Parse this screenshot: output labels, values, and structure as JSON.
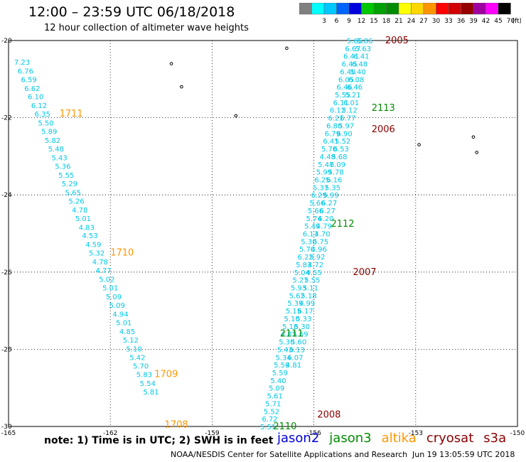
{
  "header": {
    "title": "12:00 – 23:59 UTC 06/18/2018",
    "subtitle": "12 hour collection of altimeter wave heights"
  },
  "color_legend": {
    "unit": "(ft)",
    "bins": [
      {
        "label": "",
        "color": "#808080"
      },
      {
        "label": "3",
        "color": "#00ffff"
      },
      {
        "label": "6",
        "color": "#00c8ff"
      },
      {
        "label": "9",
        "color": "#0064ff"
      },
      {
        "label": "12",
        "color": "#0000dc"
      },
      {
        "label": "15",
        "color": "#00c800"
      },
      {
        "label": "18",
        "color": "#00a000"
      },
      {
        "label": "21",
        "color": "#008c00"
      },
      {
        "label": "24",
        "color": "#ffff00"
      },
      {
        "label": "27",
        "color": "#ffd700"
      },
      {
        "label": "30",
        "color": "#ff9600"
      },
      {
        "label": "33",
        "color": "#ff0000"
      },
      {
        "label": "36",
        "color": "#d20000"
      },
      {
        "label": "39",
        "color": "#960000"
      },
      {
        "label": "42",
        "color": "#a000a0"
      },
      {
        "label": "45",
        "color": "#ff00ff"
      },
      {
        "label": "70",
        "color": "#000000"
      }
    ]
  },
  "map": {
    "lon_ticks": [
      "-165",
      "-162",
      "-159",
      "-156",
      "-153",
      "-150"
    ],
    "lat_ticks": [
      "-20",
      "-22",
      "-24",
      "-26",
      "-28",
      "-30"
    ]
  },
  "colors": {
    "swh": "#00c8e6",
    "altika": "#ff9600",
    "jason3": "#008c00",
    "cryosat": "#8b0000",
    "jason2": "#0000dc",
    "s3a": "#8b0000"
  },
  "tracks": [
    {
      "name": "left-track",
      "points": [
        {
          "lon": -164.6,
          "lat": -20.55,
          "v": "7.23"
        },
        {
          "lon": -164.5,
          "lat": -20.78,
          "v": "6.76"
        },
        {
          "lon": -164.4,
          "lat": -21.0,
          "v": "6.59"
        },
        {
          "lon": -164.3,
          "lat": -21.23,
          "v": "6.62"
        },
        {
          "lon": -164.2,
          "lat": -21.45,
          "v": "6.10"
        },
        {
          "lon": -164.1,
          "lat": -21.68,
          "v": "6.12"
        },
        {
          "lon": -164.0,
          "lat": -21.9,
          "v": "6.35"
        },
        {
          "lon": -163.9,
          "lat": -22.13,
          "v": "5.50"
        },
        {
          "lon": -163.8,
          "lat": -22.35,
          "v": "5.89"
        },
        {
          "lon": -163.7,
          "lat": -22.58,
          "v": "5.82"
        },
        {
          "lon": -163.6,
          "lat": -22.8,
          "v": "5.48"
        },
        {
          "lon": -163.5,
          "lat": -23.03,
          "v": "5.43"
        },
        {
          "lon": -163.4,
          "lat": -23.25,
          "v": "5.36"
        },
        {
          "lon": -163.3,
          "lat": -23.48,
          "v": "5.55"
        },
        {
          "lon": -163.2,
          "lat": -23.7,
          "v": "5.29"
        },
        {
          "lon": -163.1,
          "lat": -23.93,
          "v": "5.65"
        },
        {
          "lon": -163.0,
          "lat": -24.15,
          "v": "5.26"
        },
        {
          "lon": -162.9,
          "lat": -24.38,
          "v": "4.78"
        },
        {
          "lon": -162.8,
          "lat": -24.6,
          "v": "5.01"
        },
        {
          "lon": -162.7,
          "lat": -24.83,
          "v": "4.83"
        },
        {
          "lon": -162.6,
          "lat": -25.05,
          "v": "4.53"
        },
        {
          "lon": -162.5,
          "lat": -25.28,
          "v": "4.59"
        },
        {
          "lon": -162.4,
          "lat": -25.5,
          "v": "5.32"
        },
        {
          "lon": -162.3,
          "lat": -25.73,
          "v": "4.78"
        },
        {
          "lon": -162.2,
          "lat": -25.95,
          "v": "4.77"
        },
        {
          "lon": -162.1,
          "lat": -26.18,
          "v": "5.02"
        },
        {
          "lon": -162.0,
          "lat": -26.4,
          "v": "5.01"
        },
        {
          "lon": -161.9,
          "lat": -26.63,
          "v": "5.09"
        },
        {
          "lon": -161.8,
          "lat": -26.85,
          "v": "5.09"
        },
        {
          "lon": -161.7,
          "lat": -27.08,
          "v": "4.94"
        },
        {
          "lon": -161.6,
          "lat": -27.3,
          "v": "5.01"
        },
        {
          "lon": -161.5,
          "lat": -27.53,
          "v": "4.85"
        },
        {
          "lon": -161.4,
          "lat": -27.75,
          "v": "5.12"
        },
        {
          "lon": -161.3,
          "lat": -27.98,
          "v": "5.10"
        },
        {
          "lon": -161.2,
          "lat": -28.2,
          "v": "5.42"
        },
        {
          "lon": -161.1,
          "lat": -28.43,
          "v": "5.70"
        },
        {
          "lon": -161.0,
          "lat": -28.65,
          "v": "5.83"
        },
        {
          "lon": -160.9,
          "lat": -28.88,
          "v": "5.54"
        },
        {
          "lon": -160.8,
          "lat": -29.1,
          "v": "5.81"
        }
      ]
    },
    {
      "name": "track-2110",
      "points": [
        {
          "lon": -154.8,
          "lat": -20.0,
          "v": "5.66"
        },
        {
          "lon": -154.85,
          "lat": -20.2,
          "v": "6.67"
        },
        {
          "lon": -154.9,
          "lat": -20.4,
          "v": "6.41"
        },
        {
          "lon": -154.95,
          "lat": -20.6,
          "v": "6.45"
        },
        {
          "lon": -155.0,
          "lat": -20.8,
          "v": "6.40"
        },
        {
          "lon": -155.05,
          "lat": -21.0,
          "v": "6.05"
        },
        {
          "lon": -155.1,
          "lat": -21.2,
          "v": "6.46"
        },
        {
          "lon": -155.15,
          "lat": -21.4,
          "v": "5.55"
        },
        {
          "lon": -155.2,
          "lat": -21.6,
          "v": "6.11"
        },
        {
          "lon": -155.3,
          "lat": -21.8,
          "v": "6.12"
        },
        {
          "lon": -155.35,
          "lat": -22.0,
          "v": "6.21"
        },
        {
          "lon": -155.4,
          "lat": -22.2,
          "v": "6.80"
        },
        {
          "lon": -155.45,
          "lat": -22.4,
          "v": "6.79"
        },
        {
          "lon": -155.5,
          "lat": -22.6,
          "v": "6.41"
        },
        {
          "lon": -155.55,
          "lat": -22.8,
          "v": "5.70"
        },
        {
          "lon": -155.6,
          "lat": -23.0,
          "v": "4.48"
        },
        {
          "lon": -155.65,
          "lat": -23.2,
          "v": "5.47"
        },
        {
          "lon": -155.7,
          "lat": -23.4,
          "v": "5.99"
        },
        {
          "lon": -155.75,
          "lat": -23.6,
          "v": "6.25"
        },
        {
          "lon": -155.8,
          "lat": -23.8,
          "v": "5.37"
        },
        {
          "lon": -155.85,
          "lat": -24.0,
          "v": "6.29"
        },
        {
          "lon": -155.9,
          "lat": -24.2,
          "v": "5.66"
        },
        {
          "lon": -155.95,
          "lat": -24.4,
          "v": "5.66"
        },
        {
          "lon": -156.0,
          "lat": -24.6,
          "v": "5.74"
        },
        {
          "lon": -156.05,
          "lat": -24.8,
          "v": "5.49"
        },
        {
          "lon": -156.1,
          "lat": -25.0,
          "v": "6.13"
        },
        {
          "lon": -156.15,
          "lat": -25.2,
          "v": "5.30"
        },
        {
          "lon": -156.2,
          "lat": -25.4,
          "v": "5.70"
        },
        {
          "lon": -156.25,
          "lat": -25.6,
          "v": "6.22"
        },
        {
          "lon": -156.3,
          "lat": -25.8,
          "v": "5.83"
        },
        {
          "lon": -156.35,
          "lat": -26.0,
          "v": "5.04"
        },
        {
          "lon": -156.4,
          "lat": -26.2,
          "v": "5.27"
        },
        {
          "lon": -156.45,
          "lat": -26.4,
          "v": "5.93"
        },
        {
          "lon": -156.5,
          "lat": -26.6,
          "v": "5.62"
        },
        {
          "lon": -156.55,
          "lat": -26.8,
          "v": "5.39"
        },
        {
          "lon": -156.6,
          "lat": -27.0,
          "v": "5.15"
        },
        {
          "lon": -156.65,
          "lat": -27.2,
          "v": "5.10"
        },
        {
          "lon": -156.7,
          "lat": -27.4,
          "v": "5.18"
        },
        {
          "lon": -156.75,
          "lat": -27.6,
          "v": "4.82"
        },
        {
          "lon": -156.8,
          "lat": -27.8,
          "v": "5.30"
        },
        {
          "lon": -156.85,
          "lat": -28.0,
          "v": "5.43"
        },
        {
          "lon": -156.9,
          "lat": -28.2,
          "v": "5.34"
        },
        {
          "lon": -156.95,
          "lat": -28.4,
          "v": "5.59"
        },
        {
          "lon": -157.0,
          "lat": -28.6,
          "v": "5.59"
        },
        {
          "lon": -157.05,
          "lat": -28.8,
          "v": "5.40"
        },
        {
          "lon": -157.1,
          "lat": -29.0,
          "v": "5.09"
        },
        {
          "lon": -157.15,
          "lat": -29.2,
          "v": "5.61"
        },
        {
          "lon": -157.2,
          "lat": -29.4,
          "v": "5.71"
        },
        {
          "lon": -157.25,
          "lat": -29.6,
          "v": "5.52"
        },
        {
          "lon": -157.3,
          "lat": -29.8,
          "v": "6.72"
        },
        {
          "lon": -157.35,
          "lat": -30.0,
          "v": "5.51"
        }
      ]
    },
    {
      "name": "track-2111",
      "points": [
        {
          "lon": -154.5,
          "lat": -20.0,
          "v": "5.86"
        },
        {
          "lon": -154.55,
          "lat": -20.2,
          "v": "5.63"
        },
        {
          "lon": -154.6,
          "lat": -20.4,
          "v": "6.41"
        },
        {
          "lon": -154.65,
          "lat": -20.6,
          "v": "6.48"
        },
        {
          "lon": -154.7,
          "lat": -20.8,
          "v": "5.40"
        },
        {
          "lon": -154.75,
          "lat": -21.0,
          "v": "6.08"
        },
        {
          "lon": -154.8,
          "lat": -21.2,
          "v": "6.46"
        },
        {
          "lon": -154.85,
          "lat": -21.4,
          "v": "5.21"
        },
        {
          "lon": -154.9,
          "lat": -21.6,
          "v": "6.01"
        },
        {
          "lon": -154.95,
          "lat": -21.8,
          "v": "5.12"
        },
        {
          "lon": -155.0,
          "lat": -22.0,
          "v": "6.77"
        },
        {
          "lon": -155.05,
          "lat": -22.2,
          "v": "5.97"
        },
        {
          "lon": -155.1,
          "lat": -22.4,
          "v": "6.90"
        },
        {
          "lon": -155.15,
          "lat": -22.6,
          "v": "5.52"
        },
        {
          "lon": -155.2,
          "lat": -22.8,
          "v": "6.53"
        },
        {
          "lon": -155.25,
          "lat": -23.0,
          "v": "5.68"
        },
        {
          "lon": -155.3,
          "lat": -23.2,
          "v": "6.09"
        },
        {
          "lon": -155.35,
          "lat": -23.4,
          "v": "5.78"
        },
        {
          "lon": -155.4,
          "lat": -23.6,
          "v": "6.16"
        },
        {
          "lon": -155.45,
          "lat": -23.8,
          "v": "5.35"
        },
        {
          "lon": -155.5,
          "lat": -24.0,
          "v": "5.99"
        },
        {
          "lon": -155.55,
          "lat": -24.2,
          "v": "6.27"
        },
        {
          "lon": -155.6,
          "lat": -24.4,
          "v": "6.27"
        },
        {
          "lon": -155.65,
          "lat": -24.6,
          "v": "6.20"
        },
        {
          "lon": -155.7,
          "lat": -24.8,
          "v": "4.79"
        },
        {
          "lon": -155.75,
          "lat": -25.0,
          "v": "4.70"
        },
        {
          "lon": -155.8,
          "lat": -25.2,
          "v": "5.75"
        },
        {
          "lon": -155.85,
          "lat": -25.4,
          "v": "4.96"
        },
        {
          "lon": -155.9,
          "lat": -25.6,
          "v": "5.92"
        },
        {
          "lon": -155.95,
          "lat": -25.8,
          "v": "4.72"
        },
        {
          "lon": -156.0,
          "lat": -26.0,
          "v": "4.55"
        },
        {
          "lon": -156.05,
          "lat": -26.2,
          "v": "5.55"
        },
        {
          "lon": -156.1,
          "lat": -26.4,
          "v": "5.11"
        },
        {
          "lon": -156.15,
          "lat": -26.6,
          "v": "5.18"
        },
        {
          "lon": -156.2,
          "lat": -26.8,
          "v": "4.99"
        },
        {
          "lon": -156.25,
          "lat": -27.0,
          "v": "6.17"
        },
        {
          "lon": -156.3,
          "lat": -27.2,
          "v": "5.33"
        },
        {
          "lon": -156.35,
          "lat": -27.4,
          "v": "5.30"
        },
        {
          "lon": -156.4,
          "lat": -27.6,
          "v": "5.69"
        },
        {
          "lon": -156.45,
          "lat": -27.8,
          "v": "5.60"
        },
        {
          "lon": -156.5,
          "lat": -28.0,
          "v": "6.13"
        },
        {
          "lon": -156.55,
          "lat": -28.2,
          "v": "6.07"
        },
        {
          "lon": -156.6,
          "lat": -28.4,
          "v": "4.81"
        }
      ]
    }
  ],
  "pass_labels": [
    {
      "text": "1711",
      "lon": -163.5,
      "lat": -21.9,
      "sat": "altika"
    },
    {
      "text": "1710",
      "lon": -162.0,
      "lat": -25.5,
      "sat": "altika"
    },
    {
      "text": "1709",
      "lon": -160.7,
      "lat": -28.65,
      "sat": "altika"
    },
    {
      "text": "1708",
      "lon": -160.4,
      "lat": -29.95,
      "sat": "altika"
    },
    {
      "text": "2113",
      "lon": -154.3,
      "lat": -21.75,
      "sat": "jason3"
    },
    {
      "text": "2112",
      "lon": -155.5,
      "lat": -24.75,
      "sat": "jason3"
    },
    {
      "text": "2111",
      "lon": -157.0,
      "lat": -27.6,
      "sat": "jason3"
    },
    {
      "text": "2110",
      "lon": -157.2,
      "lat": -30.0,
      "sat": "jason3"
    },
    {
      "text": "2005",
      "lon": -153.9,
      "lat": -20.0,
      "sat": "cryosat"
    },
    {
      "text": "2006",
      "lon": -154.3,
      "lat": -22.3,
      "sat": "cryosat"
    },
    {
      "text": "2007",
      "lon": -154.85,
      "lat": -26.0,
      "sat": "cryosat"
    },
    {
      "text": "2008",
      "lon": -155.9,
      "lat": -29.7,
      "sat": "cryosat"
    }
  ],
  "islands": [
    {
      "lon": -160.2,
      "lat": -20.6
    },
    {
      "lon": -159.9,
      "lat": -21.2
    },
    {
      "lon": -158.3,
      "lat": -21.95
    },
    {
      "lon": -156.8,
      "lat": -20.2
    },
    {
      "lon": -152.9,
      "lat": -22.7
    },
    {
      "lon": -151.3,
      "lat": -22.5
    },
    {
      "lon": -151.2,
      "lat": -22.9
    }
  ],
  "footer": {
    "note": "note: 1) Time is in UTC; 2) SWH is in feet",
    "missions": [
      {
        "name": "jason2",
        "key": "jason2"
      },
      {
        "name": "jason3",
        "key": "jason3"
      },
      {
        "name": "altika",
        "key": "altika"
      },
      {
        "name": "cryosat",
        "key": "cryosat"
      },
      {
        "name": "s3a",
        "key": "s3a"
      }
    ],
    "credit": "NOAA/NESDIS Center for Satellite Applications and Research",
    "timestamp": "Jun 19 13:05:59 UTC 2018"
  }
}
